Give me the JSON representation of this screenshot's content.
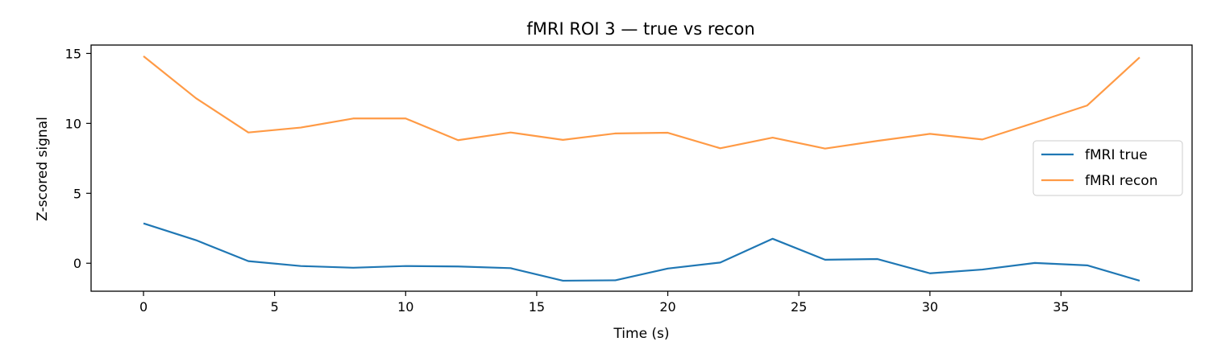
{
  "chart_data": {
    "type": "line",
    "title": "fMRI ROI 3 — true vs recon",
    "xlabel": "Time (s)",
    "ylabel": "Z-scored signal",
    "xlim": [
      -2,
      40
    ],
    "ylim": [
      -2,
      15.6
    ],
    "xticks": [
      0,
      5,
      10,
      15,
      20,
      25,
      30,
      35
    ],
    "yticks": [
      0,
      5,
      10,
      15
    ],
    "grid": false,
    "legend_position": "center-right",
    "x": [
      0,
      2,
      4,
      6,
      8,
      10,
      12,
      14,
      16,
      18,
      20,
      22,
      24,
      26,
      28,
      30,
      32,
      34,
      36,
      38
    ],
    "series": [
      {
        "name": "fMRI true",
        "color": "#1f77b4",
        "values": [
          2.85,
          1.65,
          0.15,
          -0.2,
          -0.32,
          -0.2,
          -0.23,
          -0.35,
          -1.25,
          -1.22,
          -0.38,
          0.05,
          1.75,
          0.25,
          0.3,
          -0.72,
          -0.45,
          0.02,
          -0.15,
          -1.25
        ]
      },
      {
        "name": "fMRI recon",
        "color": "#ff9a45",
        "values": [
          14.8,
          11.8,
          9.35,
          9.7,
          10.35,
          10.35,
          8.8,
          9.35,
          8.82,
          9.28,
          9.33,
          8.22,
          8.98,
          8.2,
          8.75,
          9.25,
          8.85,
          10.05,
          11.28,
          14.72
        ]
      }
    ]
  }
}
